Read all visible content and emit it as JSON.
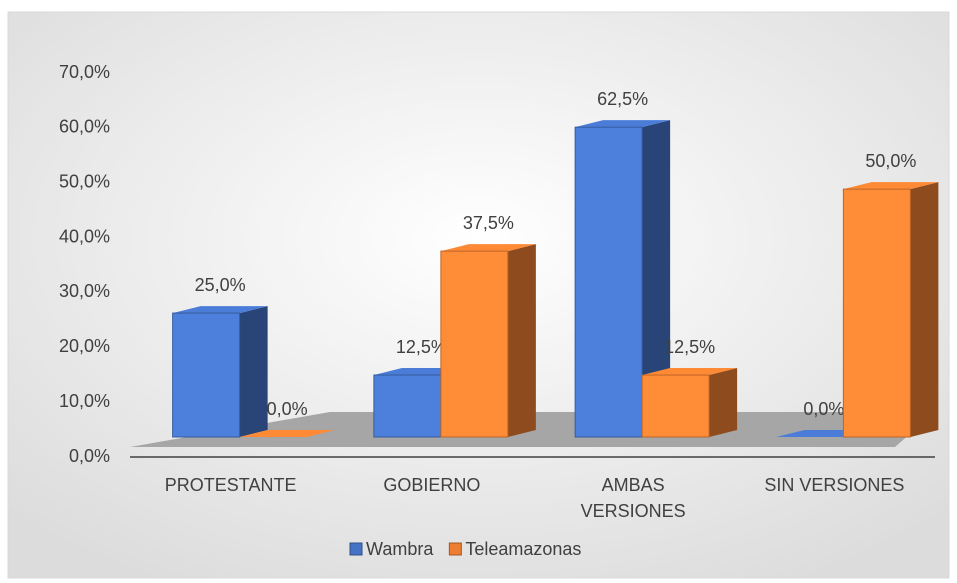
{
  "chart_data": {
    "type": "bar3d",
    "categories": [
      "PROTESTANTE",
      "GOBIERNO",
      "AMBAS VERSIONES",
      "SIN VERSIONES"
    ],
    "series": [
      {
        "name": "Wambra",
        "color": "#4472c4",
        "values": [
          25,
          12.5,
          62.5,
          0
        ],
        "value_labels": [
          "25,0%",
          "12,5%",
          "62,5%",
          "0,0%"
        ]
      },
      {
        "name": "Teleamazonas",
        "color": "#ed7d31",
        "values": [
          0,
          37.5,
          12.5,
          50
        ],
        "value_labels": [
          "0,0%",
          "37,5%",
          "12,5%",
          "50,0%"
        ]
      }
    ],
    "ylim": [
      0,
      70
    ],
    "yticks": [
      {
        "value": 0,
        "label": "0,0%"
      },
      {
        "value": 10,
        "label": "10,0%"
      },
      {
        "value": 20,
        "label": "20,0%"
      },
      {
        "value": 30,
        "label": "30,0%"
      },
      {
        "value": 40,
        "label": "40,0%"
      },
      {
        "value": 50,
        "label": "50,0%"
      },
      {
        "value": 60,
        "label": "60,0%"
      },
      {
        "value": 70,
        "label": "70,0%"
      }
    ],
    "legend": "bottom"
  }
}
